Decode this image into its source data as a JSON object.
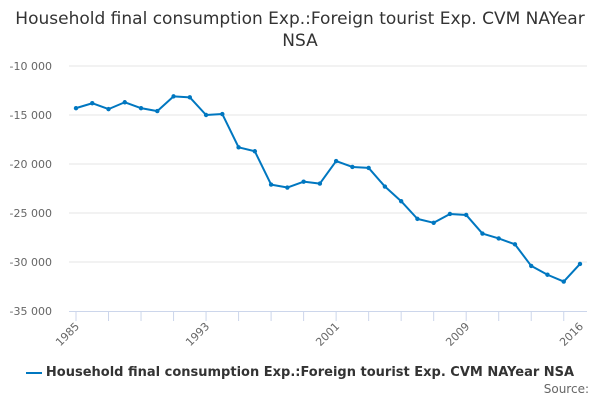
{
  "chart_data": {
    "type": "line",
    "title": "Household final consumption Exp.:Foreign tourist Exp. CVM NAYear NSA",
    "xlabel": "",
    "ylabel": "",
    "x": [
      1985,
      1986,
      1987,
      1988,
      1989,
      1990,
      1991,
      1992,
      1993,
      1994,
      1995,
      1996,
      1997,
      1998,
      1999,
      2000,
      2001,
      2002,
      2003,
      2004,
      2005,
      2006,
      2007,
      2008,
      2009,
      2010,
      2011,
      2012,
      2013,
      2014,
      2015,
      2016
    ],
    "series": [
      {
        "name": "Household final consumption Exp.:Foreign tourist Exp. CVM NAYear NSA",
        "color": "#0077c0",
        "values": [
          -14300,
          -13800,
          -14400,
          -13700,
          -14300,
          -14600,
          -13100,
          -13200,
          -15000,
          -14900,
          -18300,
          -18700,
          -22100,
          -22400,
          -21800,
          -22000,
          -19700,
          -20300,
          -20400,
          -22300,
          -23800,
          -25600,
          -26000,
          -25100,
          -25200,
          -27100,
          -27600,
          -28200,
          -30400,
          -31300,
          -32000,
          -30200
        ]
      }
    ],
    "ylim": [
      -35000,
      -10000
    ],
    "yticks": [
      -10000,
      -15000,
      -20000,
      -25000,
      -30000,
      -35000
    ],
    "ytick_labels": [
      "-10 000",
      "-15 000",
      "-20 000",
      "-25 000",
      "-30 000",
      "-35 000"
    ],
    "xtick_labels": [
      "1985",
      "1993",
      "2001",
      "2009",
      "2016"
    ],
    "grid": true,
    "legend": "bottom",
    "source_label": "Source:"
  }
}
